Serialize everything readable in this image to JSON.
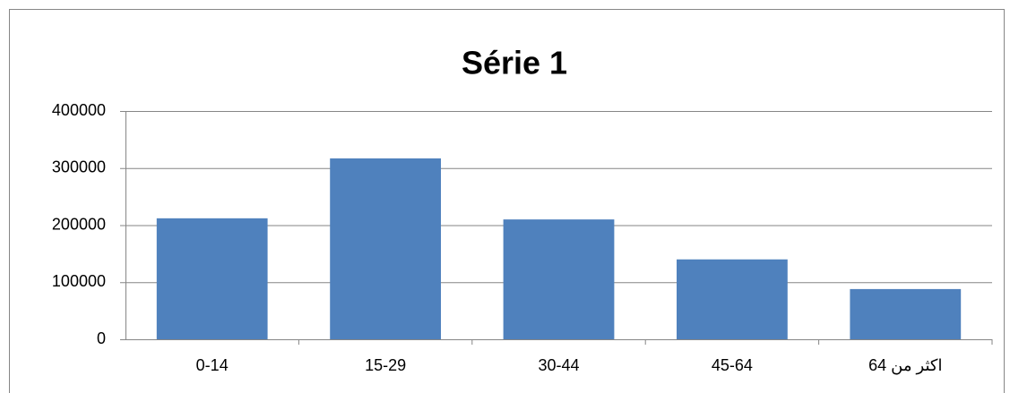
{
  "chart_data": {
    "type": "bar",
    "title": "Série 1",
    "categories": [
      "0-14",
      "15-29",
      "30-44",
      "45-64",
      "اكثر من 64"
    ],
    "values": [
      212000,
      317000,
      210000,
      140000,
      88000
    ],
    "color": "#4f81bd",
    "ylim": [
      0,
      400000
    ],
    "yticks": [
      0,
      100000,
      200000,
      300000,
      400000
    ],
    "grid": true
  }
}
